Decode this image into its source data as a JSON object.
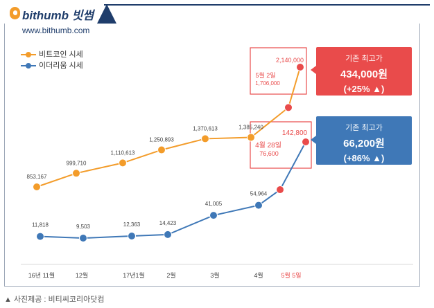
{
  "brand": {
    "name": "bithumb 빗썸",
    "url": "www.bithumb.com"
  },
  "footer": {
    "marker": "▲",
    "credit": "사진제공 : 비티씨코리아닷컴"
  },
  "colors": {
    "btc": "#f39c2a",
    "eth": "#3f78b7",
    "highlight": "#e94b4b",
    "callout_red": "#e94b4b",
    "callout_blue": "#3f78b7"
  },
  "callouts": [
    {
      "line1": "기존 최고가",
      "line2": "434,000원",
      "line3": "(+25% ▲)"
    },
    {
      "line1": "기존 최고가",
      "line2": "66,200원",
      "line3": "(+86% ▲)"
    }
  ],
  "chart_data": {
    "type": "line",
    "title": "",
    "xlabel": "",
    "ylabel": "",
    "categories": [
      "16년 11월",
      "12월",
      "17년1월",
      "2월",
      "3월",
      "4월",
      "5월 5일"
    ],
    "series": [
      {
        "name": "비트코인 시세",
        "points": [
          {
            "x": "16년 11월",
            "value": 853167,
            "label": "853,167"
          },
          {
            "x": "12월",
            "value": 999710,
            "label": "999,710"
          },
          {
            "x": "17년1월",
            "value": 1110613,
            "label": "1,110,613"
          },
          {
            "x": "2월",
            "value": 1250893,
            "label": "1,250,893"
          },
          {
            "x": "3월",
            "value": 1370613,
            "label": "1,370,613"
          },
          {
            "x": "4월",
            "value": 1385240,
            "label": "1,385,240"
          },
          {
            "x": "5월 2일",
            "value": 1706000,
            "label": "1,706,000",
            "date_label": "5월 2일",
            "highlight": true
          },
          {
            "x": "5월 5일",
            "value": 2140000,
            "label": "2,140,000",
            "highlight": true
          }
        ]
      },
      {
        "name": "이더리움 시세",
        "points": [
          {
            "x": "16년 11월",
            "value": 11818,
            "label": "11,818"
          },
          {
            "x": "12월",
            "value": 9503,
            "label": "9,503"
          },
          {
            "x": "17년1월",
            "value": 12363,
            "label": "12,363"
          },
          {
            "x": "2월",
            "value": 14423,
            "label": "14,423"
          },
          {
            "x": "3월",
            "value": 41005,
            "label": "41,005"
          },
          {
            "x": "4월",
            "value": 54964,
            "label": "54,964"
          },
          {
            "x": "4월 28일",
            "value": 76600,
            "label": "76,600",
            "date_label": "4월 28일",
            "highlight": true
          },
          {
            "x": "5월 5일",
            "value": 142800,
            "label": "142,800",
            "highlight": true
          }
        ]
      }
    ],
    "highlight_tick": "5월 5일"
  }
}
